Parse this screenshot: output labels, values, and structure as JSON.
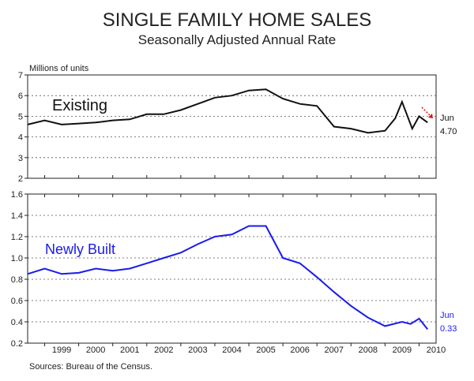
{
  "title": "SINGLE FAMILY HOME SALES",
  "subtitle": "Seasonally Adjusted Annual Rate",
  "source": "Sources:  Bureau of the Census.",
  "colors": {
    "existing": "#111111",
    "new": "#1a1aee",
    "arrow": "#dd1111",
    "grid": "#555555"
  },
  "chart_data": [
    {
      "type": "line",
      "name": "existing",
      "ylabel": "Millions of units",
      "ylim": [
        2,
        7
      ],
      "yticks": [
        "2",
        "3",
        "4",
        "5",
        "6",
        "7"
      ],
      "series_label": "Existing",
      "end_label": {
        "month": "Jun",
        "value": "4.70"
      },
      "x": [
        1998.5,
        1999.0,
        1999.5,
        2000.0,
        2000.5,
        2001.0,
        2001.5,
        2002.0,
        2002.5,
        2003.0,
        2003.5,
        2004.0,
        2004.5,
        2005.0,
        2005.5,
        2006.0,
        2006.5,
        2007.0,
        2007.5,
        2008.0,
        2008.5,
        2009.0,
        2009.3,
        2009.5,
        2009.8,
        2010.0,
        2010.25
      ],
      "y": [
        4.6,
        4.8,
        4.6,
        4.65,
        4.7,
        4.8,
        4.85,
        5.1,
        5.1,
        5.3,
        5.6,
        5.9,
        6.0,
        6.25,
        6.3,
        5.85,
        5.6,
        5.5,
        4.5,
        4.4,
        4.2,
        4.3,
        4.9,
        5.7,
        4.4,
        5.0,
        4.7
      ]
    },
    {
      "type": "line",
      "name": "new",
      "ylim": [
        0.2,
        1.6
      ],
      "yticks": [
        "0.2",
        "0.4",
        "0.6",
        "0.8",
        "1.0",
        "1.2",
        "1.4",
        "1.6"
      ],
      "series_label": "Newly Built",
      "end_label": {
        "month": "Jun",
        "value": "0.33"
      },
      "x": [
        1998.5,
        1999.0,
        1999.5,
        2000.0,
        2000.5,
        2001.0,
        2001.5,
        2002.0,
        2002.5,
        2003.0,
        2003.5,
        2004.0,
        2004.5,
        2005.0,
        2005.5,
        2006.0,
        2006.5,
        2007.0,
        2007.5,
        2008.0,
        2008.5,
        2009.0,
        2009.5,
        2009.75,
        2010.0,
        2010.25
      ],
      "y": [
        0.85,
        0.9,
        0.85,
        0.86,
        0.9,
        0.88,
        0.9,
        0.95,
        1.0,
        1.05,
        1.13,
        1.2,
        1.22,
        1.3,
        1.3,
        1.0,
        0.95,
        0.82,
        0.68,
        0.55,
        0.44,
        0.36,
        0.4,
        0.38,
        0.43,
        0.33
      ]
    }
  ],
  "xaxis": {
    "range": [
      1998.5,
      2010.5
    ],
    "ticks": [
      "1999",
      "2000",
      "2001",
      "2002",
      "2003",
      "2004",
      "2005",
      "2006",
      "2007",
      "2008",
      "2009",
      "2010"
    ]
  }
}
